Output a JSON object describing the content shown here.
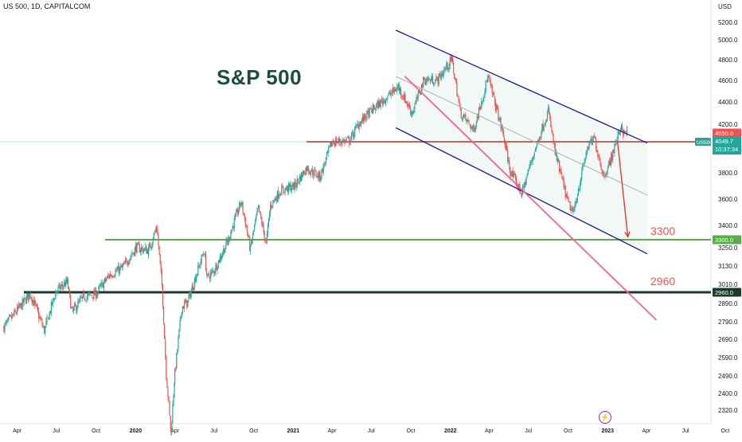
{
  "header": {
    "symbol_text": "US 500, 1D, CAPITALCOM",
    "currency": "USD"
  },
  "title_text": "S&P 500",
  "annotations": {
    "level_3300": "3300",
    "level_2960": "2960"
  },
  "price_tags": {
    "resistance": "4050.0",
    "symbol": "US500",
    "current": "4049.7",
    "countdown": "10:37:34",
    "support_3300": "3300.0",
    "support_2960": "2960.0"
  },
  "colors": {
    "up": "#26a69a",
    "down": "#ef5350",
    "channel": "#1a1a8c",
    "midline": "#b0b0b0",
    "pink_line": "#f06292",
    "resistance": "#ef5350",
    "support_green": "#5aaa4f",
    "support_dark": "#1e3a2a",
    "axis_text": "#131722",
    "price_axis_line": "#e0e3eb"
  },
  "flash_icon": "lightning-icon",
  "chart_data": {
    "type": "candlestick",
    "timeframe": "1D",
    "instrument": "US 500",
    "source": "CAPITALCOM",
    "x_ticks": [
      "Apr",
      "Jul",
      "Oct",
      "2020",
      "Apr",
      "Jul",
      "Oct",
      "2021",
      "Apr",
      "Jul",
      "Oct",
      "2022",
      "Apr",
      "Jul",
      "Oct",
      "2023",
      "Apr",
      "Jul",
      "Oct"
    ],
    "y_ticks": [
      "5200.0",
      "5000.0",
      "4800.0",
      "4600.0",
      "4400.0",
      "4200.0",
      "3800.0",
      "3600.0",
      "3400.0",
      "3250.0",
      "3130.0",
      "3010.0",
      "2890.0",
      "2790.0",
      "2690.0",
      "2590.0",
      "2490.0",
      "2400.0",
      "2320.0"
    ],
    "y_range": [
      2280,
      5300
    ],
    "price_path": [
      [
        "2019-03-01",
        2760
      ],
      [
        "2019-04-01",
        2850
      ],
      [
        "2019-05-01",
        2950
      ],
      [
        "2019-06-03",
        2740
      ],
      [
        "2019-07-01",
        2970
      ],
      [
        "2019-07-26",
        3025
      ],
      [
        "2019-08-06",
        2840
      ],
      [
        "2019-09-02",
        2930
      ],
      [
        "2019-10-01",
        2950
      ],
      [
        "2019-11-01",
        3070
      ],
      [
        "2019-12-02",
        3120
      ],
      [
        "2020-01-02",
        3250
      ],
      [
        "2020-01-31",
        3230
      ],
      [
        "2020-02-19",
        3390
      ],
      [
        "2020-03-02",
        3000
      ],
      [
        "2020-03-12",
        2500
      ],
      [
        "2020-03-23",
        2210
      ],
      [
        "2020-04-01",
        2500
      ],
      [
        "2020-04-17",
        2870
      ],
      [
        "2020-05-01",
        2900
      ],
      [
        "2020-06-08",
        3230
      ],
      [
        "2020-06-15",
        3050
      ],
      [
        "2020-07-01",
        3100
      ],
      [
        "2020-08-03",
        3300
      ],
      [
        "2020-09-02",
        3580
      ],
      [
        "2020-09-23",
        3240
      ],
      [
        "2020-10-12",
        3530
      ],
      [
        "2020-10-30",
        3270
      ],
      [
        "2020-11-09",
        3550
      ],
      [
        "2020-12-01",
        3660
      ],
      [
        "2021-01-04",
        3700
      ],
      [
        "2021-02-01",
        3840
      ],
      [
        "2021-03-04",
        3770
      ],
      [
        "2021-04-01",
        4050
      ],
      [
        "2021-05-12",
        4060
      ],
      [
        "2021-06-01",
        4200
      ],
      [
        "2021-07-01",
        4320
      ],
      [
        "2021-08-02",
        4430
      ],
      [
        "2021-09-02",
        4540
      ],
      [
        "2021-10-04",
        4300
      ],
      [
        "2021-11-01",
        4610
      ],
      [
        "2021-12-01",
        4600
      ],
      [
        "2022-01-04",
        4800
      ],
      [
        "2022-01-24",
        4300
      ],
      [
        "2022-02-24",
        4150
      ],
      [
        "2022-03-29",
        4630
      ],
      [
        "2022-05-02",
        4130
      ],
      [
        "2022-05-20",
        3810
      ],
      [
        "2022-06-16",
        3640
      ],
      [
        "2022-07-01",
        3820
      ],
      [
        "2022-08-16",
        4320
      ],
      [
        "2022-09-01",
        3960
      ],
      [
        "2022-09-30",
        3580
      ],
      [
        "2022-10-13",
        3490
      ],
      [
        "2022-11-15",
        4000
      ],
      [
        "2022-12-01",
        4080
      ],
      [
        "2022-12-22",
        3780
      ],
      [
        "2023-01-03",
        3850
      ],
      [
        "2023-02-02",
        4195
      ],
      [
        "2023-02-08",
        4110
      ],
      [
        "2023-02-15",
        4148
      ],
      [
        "2023-02-17",
        4050
      ]
    ],
    "levels": [
      {
        "price": 4050,
        "style": "resistance"
      },
      {
        "price": 3300,
        "style": "support"
      },
      {
        "price": 2960,
        "style": "support"
      }
    ],
    "channel": {
      "upper": [
        [
          "2021-08-27",
          5110
        ],
        [
          "2023-04-03",
          4040
        ]
      ],
      "middle": [
        [
          "2021-08-27",
          4640
        ],
        [
          "2023-04-03",
          3630
        ]
      ],
      "lower": [
        [
          "2021-08-27",
          4170
        ],
        [
          "2023-04-03",
          3210
        ]
      ]
    },
    "pink_trendline": [
      [
        "2021-09-17",
        4640
      ],
      [
        "2023-04-24",
        2800
      ]
    ],
    "projection_arrow": [
      [
        "2023-01-24",
        4050
      ],
      [
        "2023-02-17",
        3320
      ]
    ]
  }
}
